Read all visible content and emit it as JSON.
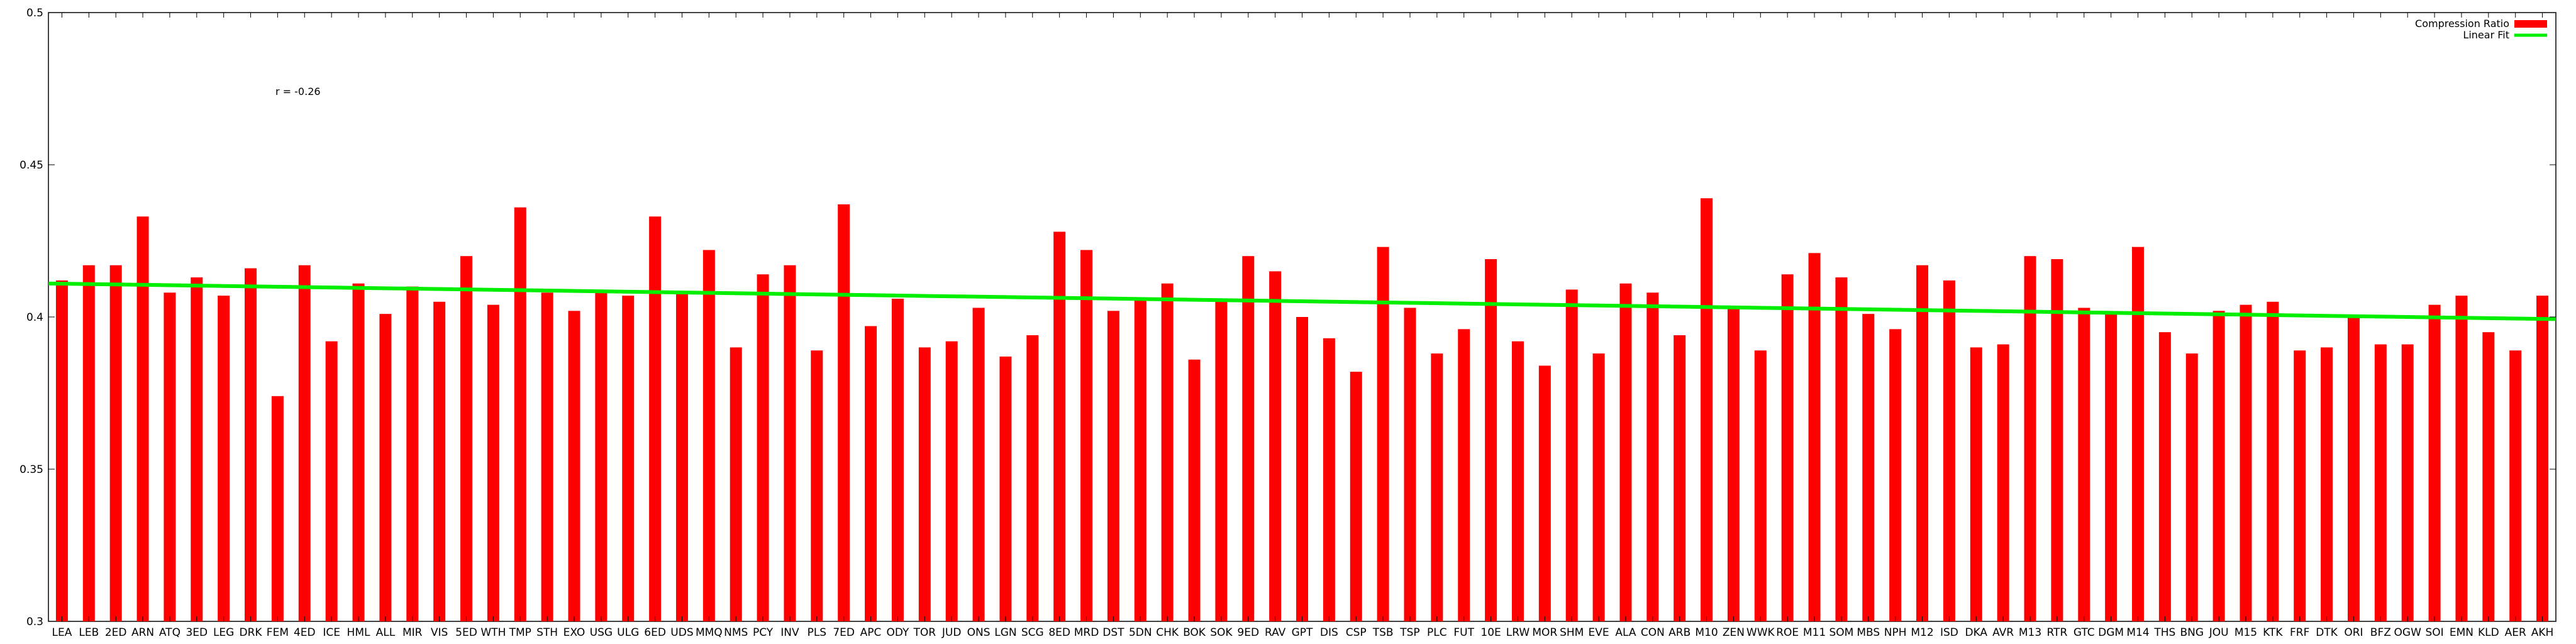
{
  "chart_data": {
    "type": "bar",
    "title": "",
    "xlabel": "",
    "ylabel": "",
    "ylim": [
      0.3,
      0.5
    ],
    "yticks": [
      "0.3",
      "0.35",
      "0.4",
      "0.45",
      "0.5"
    ],
    "grid": false,
    "legend_position": "top-right",
    "annotation": "r = -0.26",
    "categories": [
      "LEA",
      "LEB",
      "2ED",
      "ARN",
      "ATQ",
      "3ED",
      "LEG",
      "DRK",
      "FEM",
      "4ED",
      "ICE",
      "HML",
      "ALL",
      "MIR",
      "VIS",
      "5ED",
      "WTH",
      "TMP",
      "STH",
      "EXO",
      "USG",
      "ULG",
      "6ED",
      "UDS",
      "MMQ",
      "NMS",
      "PCY",
      "INV",
      "PLS",
      "7ED",
      "APC",
      "ODY",
      "TOR",
      "JUD",
      "ONS",
      "LGN",
      "SCG",
      "8ED",
      "MRD",
      "DST",
      "5DN",
      "CHK",
      "BOK",
      "SOK",
      "9ED",
      "RAV",
      "GPT",
      "DIS",
      "CSP",
      "TSB",
      "TSP",
      "PLC",
      "FUT",
      "10E",
      "LRW",
      "MOR",
      "SHM",
      "EVE",
      "ALA",
      "CON",
      "ARB",
      "M10",
      "ZEN",
      "WWK",
      "ROE",
      "M11",
      "SOM",
      "MBS",
      "NPH",
      "M12",
      "ISD",
      "DKA",
      "AVR",
      "M13",
      "RTR",
      "GTC",
      "DGM",
      "M14",
      "THS",
      "BNG",
      "JOU",
      "M15",
      "KTK",
      "FRF",
      "DTK",
      "ORI",
      "BFZ",
      "OGW",
      "SOI",
      "EMN",
      "KLD",
      "AER",
      "AKH"
    ],
    "series": [
      {
        "name": "Compression Ratio",
        "kind": "bar",
        "color": "#ff0000",
        "values": [
          0.412,
          0.417,
          0.417,
          0.433,
          0.408,
          0.413,
          0.407,
          0.416,
          0.374,
          0.417,
          0.392,
          0.411,
          0.401,
          0.41,
          0.405,
          0.42,
          0.404,
          0.436,
          0.408,
          0.402,
          0.408,
          0.407,
          0.433,
          0.408,
          0.422,
          0.39,
          0.414,
          0.417,
          0.389,
          0.437,
          0.397,
          0.406,
          0.39,
          0.392,
          0.403,
          0.387,
          0.394,
          0.428,
          0.422,
          0.402,
          0.406,
          0.411,
          0.386,
          0.406,
          0.42,
          0.415,
          0.4,
          0.393,
          0.382,
          0.423,
          0.403,
          0.388,
          0.396,
          0.419,
          0.392,
          0.384,
          0.409,
          0.388,
          0.411,
          0.408,
          0.394,
          0.439,
          0.403,
          0.389,
          0.414,
          0.421,
          0.413,
          0.401,
          0.396,
          0.417,
          0.412,
          0.39,
          0.391,
          0.42,
          0.419,
          0.403,
          0.401,
          0.423,
          0.395,
          0.388,
          0.402,
          0.404,
          0.405,
          0.389,
          0.39,
          0.4,
          0.391,
          0.391,
          0.404,
          0.407,
          0.395,
          0.389,
          0.407
        ]
      },
      {
        "name": "Linear Fit",
        "kind": "line",
        "color": "#00ee00",
        "start": 0.411,
        "end": 0.3993
      }
    ]
  }
}
